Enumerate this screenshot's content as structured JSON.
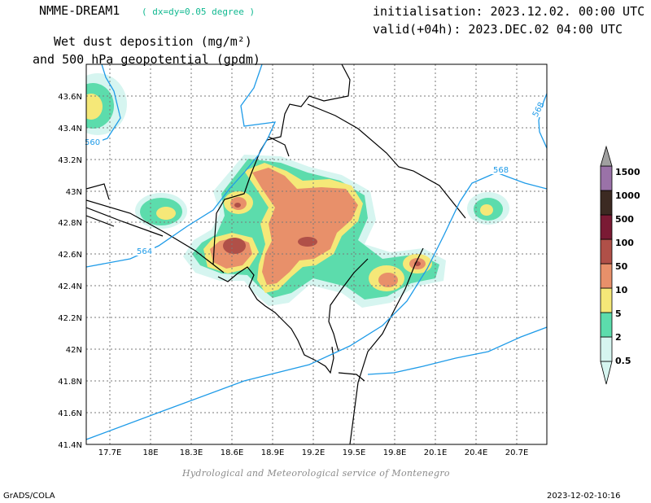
{
  "header": {
    "model": "NMME-DREAM1",
    "resolution": "( dx=dy=0.05 degree )",
    "initialisation": "initialisation: 2023.12.02. 00:00 UTC",
    "valid": "valid(+04h): 2023.DEC.02 04:00 UTC",
    "title_line1": "Wet dust deposition (mg/m²)",
    "title_line2": "and 500 hPa geopotential (gpdm)"
  },
  "map": {
    "lon_range": [
      17.55,
      20.95
    ],
    "lat_range": [
      41.4,
      43.7
    ],
    "lon_ticks": [
      "17.7E",
      "18E",
      "18.3E",
      "18.6E",
      "18.9E",
      "19.2E",
      "19.5E",
      "19.8E",
      "20.1E",
      "20.4E",
      "20.7E"
    ],
    "lat_ticks": [
      "43.6N",
      "43.4N",
      "43.2N",
      "43N",
      "42.8N",
      "42.6N",
      "42.4N",
      "42.2N",
      "42N",
      "41.8N",
      "41.6N",
      "41.4N"
    ],
    "contour_labels": [
      "560",
      "564",
      "568",
      "568"
    ],
    "contour_color": "#1e9be8"
  },
  "legend": {
    "levels": [
      "0.5",
      "2",
      "5",
      "10",
      "50",
      "100",
      "500",
      "1000",
      "1500"
    ],
    "colors": [
      "#d6f5f0",
      "#5cdcac",
      "#f5e878",
      "#e8906a",
      "#b05048",
      "#7a1a34",
      "#3c2a22",
      "#9a72a8",
      "#a0a0a0"
    ]
  },
  "footer": {
    "credit": "Hydrological and Meteorological service of Montenegro",
    "software": "GrADS/COLA",
    "timestamp": "2023-12-02-10:16"
  }
}
